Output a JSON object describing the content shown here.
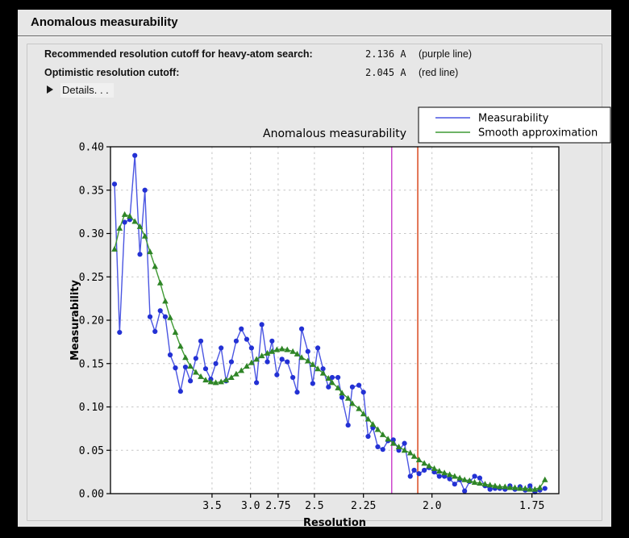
{
  "window": {
    "title": "Anomalous measurability"
  },
  "cutoffs": [
    {
      "label": "Recommended resolution cutoff for heavy-atom search:",
      "value": "2.136 A",
      "note": "(purple line)"
    },
    {
      "label": "Optimistic resolution cutoff:",
      "value": "2.045 A",
      "note": "(red line)"
    }
  ],
  "details": {
    "label": "Details. . ."
  },
  "chart_data": {
    "type": "line",
    "title": "Anomalous measurability",
    "xlabel": "Resolution",
    "ylabel": "Measurability",
    "x_scale": "inverse_d_squared",
    "xlim_inv_d_sq": [
      0.0039,
      0.3471
    ],
    "ylim": [
      0.0,
      0.4
    ],
    "grid": true,
    "legend_position": "upper right",
    "x_ticks_d": [
      3.5,
      3.0,
      2.75,
      2.5,
      2.25,
      2.0,
      1.75
    ],
    "x_tick_labels": [
      "3.5",
      "3.0",
      "2.75",
      "2.5",
      "2.25",
      "2.0",
      "1.75"
    ],
    "y_tick_labels": [
      "0.40",
      "0.35",
      "0.30",
      "0.25",
      "0.20",
      "0.15",
      "0.10",
      "0.05",
      "0.00"
    ],
    "resolution_bins": [
      11.97,
      9.59,
      8.23,
      7.32,
      6.66,
      6.15,
      5.75,
      5.41,
      5.13,
      4.88,
      4.67,
      4.49,
      4.32,
      4.17,
      4.04,
      3.92,
      3.8,
      3.7,
      3.61,
      3.52,
      3.44,
      3.36,
      3.29,
      3.22,
      3.16,
      3.1,
      3.04,
      2.99,
      2.94,
      2.89,
      2.84,
      2.8,
      2.76,
      2.72,
      2.68,
      2.64,
      2.61,
      2.58,
      2.54,
      2.51,
      2.48,
      2.45,
      2.42,
      2.4,
      2.37,
      2.35,
      2.32,
      2.3,
      2.27,
      2.25,
      2.23,
      2.21,
      2.19,
      2.17,
      2.15,
      2.13,
      2.11,
      2.09,
      2.07,
      2.057,
      2.041,
      2.024,
      2.009,
      1.993,
      1.978,
      1.963,
      1.948,
      1.934,
      1.92,
      1.907,
      1.894,
      1.881,
      1.868,
      1.855,
      1.843,
      1.831,
      1.82,
      1.808,
      1.797,
      1.786,
      1.775,
      1.764,
      1.754,
      1.744,
      1.734,
      1.724
    ],
    "series": [
      {
        "name": "Measurability",
        "color": "#4a55e2",
        "marker_color": "#2331d4",
        "marker": "circle",
        "values": [
          0.357,
          0.186,
          0.313,
          0.316,
          0.39,
          0.276,
          0.35,
          0.204,
          0.187,
          0.211,
          0.204,
          0.16,
          0.145,
          0.118,
          0.146,
          0.13,
          0.156,
          0.176,
          0.144,
          0.132,
          0.15,
          0.168,
          0.13,
          0.152,
          0.176,
          0.19,
          0.178,
          0.168,
          0.128,
          0.195,
          0.152,
          0.176,
          0.137,
          0.155,
          0.152,
          0.134,
          0.117,
          0.19,
          0.164,
          0.127,
          0.168,
          0.144,
          0.123,
          0.134,
          0.134,
          0.111,
          0.079,
          0.123,
          0.125,
          0.117,
          0.066,
          0.076,
          0.054,
          0.051,
          0.061,
          0.062,
          0.05,
          0.058,
          0.02,
          0.027,
          0.023,
          0.027,
          0.03,
          0.025,
          0.02,
          0.02,
          0.017,
          0.011,
          0.016,
          0.003,
          0.014,
          0.02,
          0.018,
          0.009,
          0.005,
          0.006,
          0.006,
          0.005,
          0.009,
          0.005,
          0.008,
          0.004,
          0.009,
          0.002,
          0.004,
          0.006
        ]
      },
      {
        "name": "Smooth approximation",
        "color": "#3f9a33",
        "marker_color": "#2f8527",
        "marker": "triangle",
        "values": [
          0.282,
          0.306,
          0.322,
          0.32,
          0.314,
          0.308,
          0.297,
          0.279,
          0.262,
          0.243,
          0.222,
          0.203,
          0.186,
          0.17,
          0.157,
          0.147,
          0.14,
          0.135,
          0.131,
          0.129,
          0.128,
          0.129,
          0.131,
          0.134,
          0.138,
          0.142,
          0.147,
          0.151,
          0.155,
          0.159,
          0.162,
          0.164,
          0.166,
          0.167,
          0.166,
          0.164,
          0.161,
          0.157,
          0.153,
          0.149,
          0.144,
          0.139,
          0.133,
          0.128,
          0.122,
          0.116,
          0.11,
          0.104,
          0.098,
          0.092,
          0.086,
          0.08,
          0.074,
          0.068,
          0.063,
          0.058,
          0.054,
          0.05,
          0.047,
          0.043,
          0.039,
          0.035,
          0.032,
          0.029,
          0.026,
          0.024,
          0.022,
          0.02,
          0.018,
          0.016,
          0.015,
          0.013,
          0.012,
          0.011,
          0.01,
          0.009,
          0.008,
          0.008,
          0.007,
          0.007,
          0.006,
          0.006,
          0.005,
          0.005,
          0.007,
          0.016
        ]
      }
    ],
    "cutoff_lines": [
      {
        "d": 2.136,
        "color": "#c93ac9",
        "name": "purple line"
      },
      {
        "d": 2.045,
        "color": "#d63d10",
        "name": "red line"
      }
    ],
    "colors": {
      "grid": "#c6c6c6",
      "axis": "#000000",
      "plot_bg": "#ffffff"
    }
  }
}
